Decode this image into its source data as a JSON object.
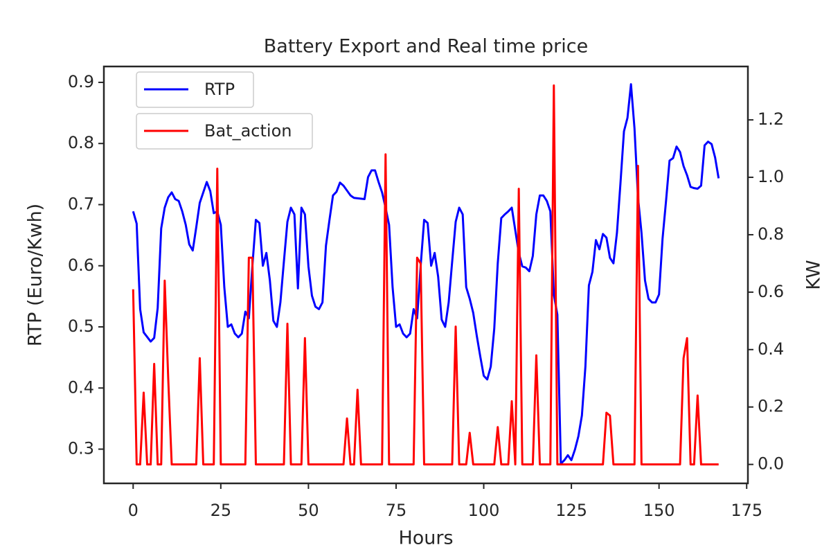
{
  "chart_data": {
    "type": "line",
    "title": "Battery Export and Real time price",
    "xlabel": "Hours",
    "ylabel": "RTP (Euro/Kwh)",
    "y2label": "KW",
    "xlim": [
      -8.35,
      175.35
    ],
    "xticks": [
      0,
      25,
      50,
      75,
      100,
      125,
      150,
      175
    ],
    "ylim": [
      0.244,
      0.926
    ],
    "yticks": [
      0.3,
      0.4,
      0.5,
      0.6,
      0.7,
      0.8,
      0.9
    ],
    "y2lim": [
      -0.066,
      1.386
    ],
    "y2ticks": [
      {
        "value": 0,
        "label": "0.0"
      },
      0.2,
      0.4,
      0.6,
      0.8,
      {
        "value": 1,
        "label": "1.0"
      },
      1.2
    ],
    "series": [
      {
        "name": "RTP",
        "color": "#0000ff",
        "axis": "y",
        "x": [
          0,
          1,
          2,
          3,
          5,
          6,
          7,
          8,
          9,
          10,
          11,
          12,
          13,
          14,
          15,
          16,
          17,
          18,
          19,
          20,
          21,
          22,
          23,
          24,
          25,
          26,
          27,
          28,
          29,
          30,
          31,
          32,
          33,
          34,
          35,
          36,
          37,
          38,
          39,
          40,
          41,
          42,
          43,
          44,
          45,
          46,
          47,
          48,
          49,
          50,
          51,
          52,
          53,
          54,
          55,
          56,
          57,
          58,
          59,
          60,
          61,
          62,
          63,
          66,
          67,
          68,
          69,
          70,
          71,
          72,
          73,
          74,
          75,
          76,
          77,
          78,
          79,
          80,
          81,
          82,
          83,
          84,
          85,
          86,
          87,
          88,
          89,
          90,
          91,
          92,
          93,
          94,
          95,
          96,
          97,
          98,
          99,
          100,
          101,
          102,
          103,
          104,
          105,
          106,
          107,
          108,
          109,
          110,
          111,
          112,
          113,
          114,
          115,
          116,
          117,
          118,
          119,
          120,
          121,
          122,
          123,
          124,
          125,
          126,
          127,
          128,
          129,
          130,
          131,
          132,
          133,
          134,
          135,
          136,
          137,
          138,
          139,
          140,
          141,
          142,
          143,
          144,
          145,
          146,
          147,
          148,
          149,
          150,
          151,
          152,
          153,
          154,
          155,
          156,
          157,
          158,
          159,
          160,
          161,
          162,
          163,
          164,
          165,
          166,
          167
        ],
        "values": [
          0.689,
          0.669,
          0.529,
          0.491,
          0.476,
          0.482,
          0.531,
          0.661,
          0.695,
          0.712,
          0.72,
          0.709,
          0.706,
          0.689,
          0.667,
          0.635,
          0.625,
          0.663,
          0.703,
          0.72,
          0.737,
          0.722,
          0.686,
          0.689,
          0.667,
          0.565,
          0.5,
          0.504,
          0.489,
          0.483,
          0.489,
          0.525,
          0.514,
          0.599,
          0.675,
          0.67,
          0.6,
          0.621,
          0.576,
          0.51,
          0.5,
          0.54,
          0.607,
          0.672,
          0.695,
          0.684,
          0.563,
          0.695,
          0.684,
          0.599,
          0.551,
          0.533,
          0.529,
          0.54,
          0.633,
          0.675,
          0.715,
          0.721,
          0.736,
          0.731,
          0.723,
          0.715,
          0.711,
          0.709,
          0.745,
          0.756,
          0.756,
          0.737,
          0.72,
          0.695,
          0.667,
          0.565,
          0.5,
          0.504,
          0.489,
          0.483,
          0.489,
          0.529,
          0.514,
          0.599,
          0.675,
          0.67,
          0.6,
          0.621,
          0.582,
          0.512,
          0.5,
          0.54,
          0.607,
          0.672,
          0.695,
          0.684,
          0.565,
          0.546,
          0.523,
          0.486,
          0.452,
          0.42,
          0.414,
          0.435,
          0.497,
          0.604,
          0.678,
          0.684,
          0.689,
          0.695,
          0.658,
          0.621,
          0.599,
          0.597,
          0.591,
          0.616,
          0.684,
          0.715,
          0.715,
          0.706,
          0.689,
          0.553,
          0.52,
          0.276,
          0.282,
          0.29,
          0.282,
          0.299,
          0.321,
          0.355,
          0.435,
          0.568,
          0.59,
          0.642,
          0.627,
          0.652,
          0.646,
          0.613,
          0.604,
          0.654,
          0.735,
          0.82,
          0.842,
          0.897,
          0.825,
          0.712,
          0.654,
          0.576,
          0.546,
          0.54,
          0.54,
          0.553,
          0.644,
          0.706,
          0.772,
          0.776,
          0.795,
          0.786,
          0.763,
          0.748,
          0.729,
          0.727,
          0.726,
          0.731,
          0.797,
          0.803,
          0.799,
          0.777,
          0.743
        ]
      },
      {
        "name": "Bat_action",
        "color": "#ff0000",
        "axis": "y2",
        "x": [
          0,
          1,
          2,
          3,
          4,
          5,
          6,
          7,
          8,
          9,
          10,
          11,
          18,
          19,
          20,
          23,
          24,
          25,
          32,
          33,
          34,
          35,
          43,
          44,
          45,
          48,
          49,
          50,
          60,
          61,
          62,
          63,
          64,
          65,
          71,
          72,
          73,
          80,
          81,
          82,
          83,
          91,
          92,
          93,
          95,
          96,
          97,
          103,
          104,
          105,
          107,
          108,
          109,
          110,
          111,
          114,
          115,
          116,
          119,
          120,
          121,
          134,
          135,
          136,
          137,
          143,
          144,
          145,
          156,
          157,
          158,
          159,
          160,
          161,
          162,
          167
        ],
        "values": [
          0.61,
          0,
          0,
          0.25,
          0,
          0,
          0.35,
          0,
          0,
          0.64,
          0.3,
          0,
          0,
          0.37,
          0,
          0,
          1.03,
          0,
          0,
          0.72,
          0.72,
          0,
          0,
          0.49,
          0,
          0,
          0.44,
          0,
          0,
          0.16,
          0,
          0,
          0.26,
          0,
          0,
          1.08,
          0,
          0,
          0.72,
          0.7,
          0,
          0,
          0.48,
          0,
          0,
          0.11,
          0,
          0,
          0.13,
          0,
          0,
          0.22,
          0,
          0.96,
          0,
          0,
          0.38,
          0,
          0,
          1.32,
          0,
          0,
          0.18,
          0.17,
          0,
          0,
          1.04,
          0,
          0,
          0.37,
          0.44,
          0,
          0,
          0.24,
          0,
          0
        ]
      }
    ]
  }
}
